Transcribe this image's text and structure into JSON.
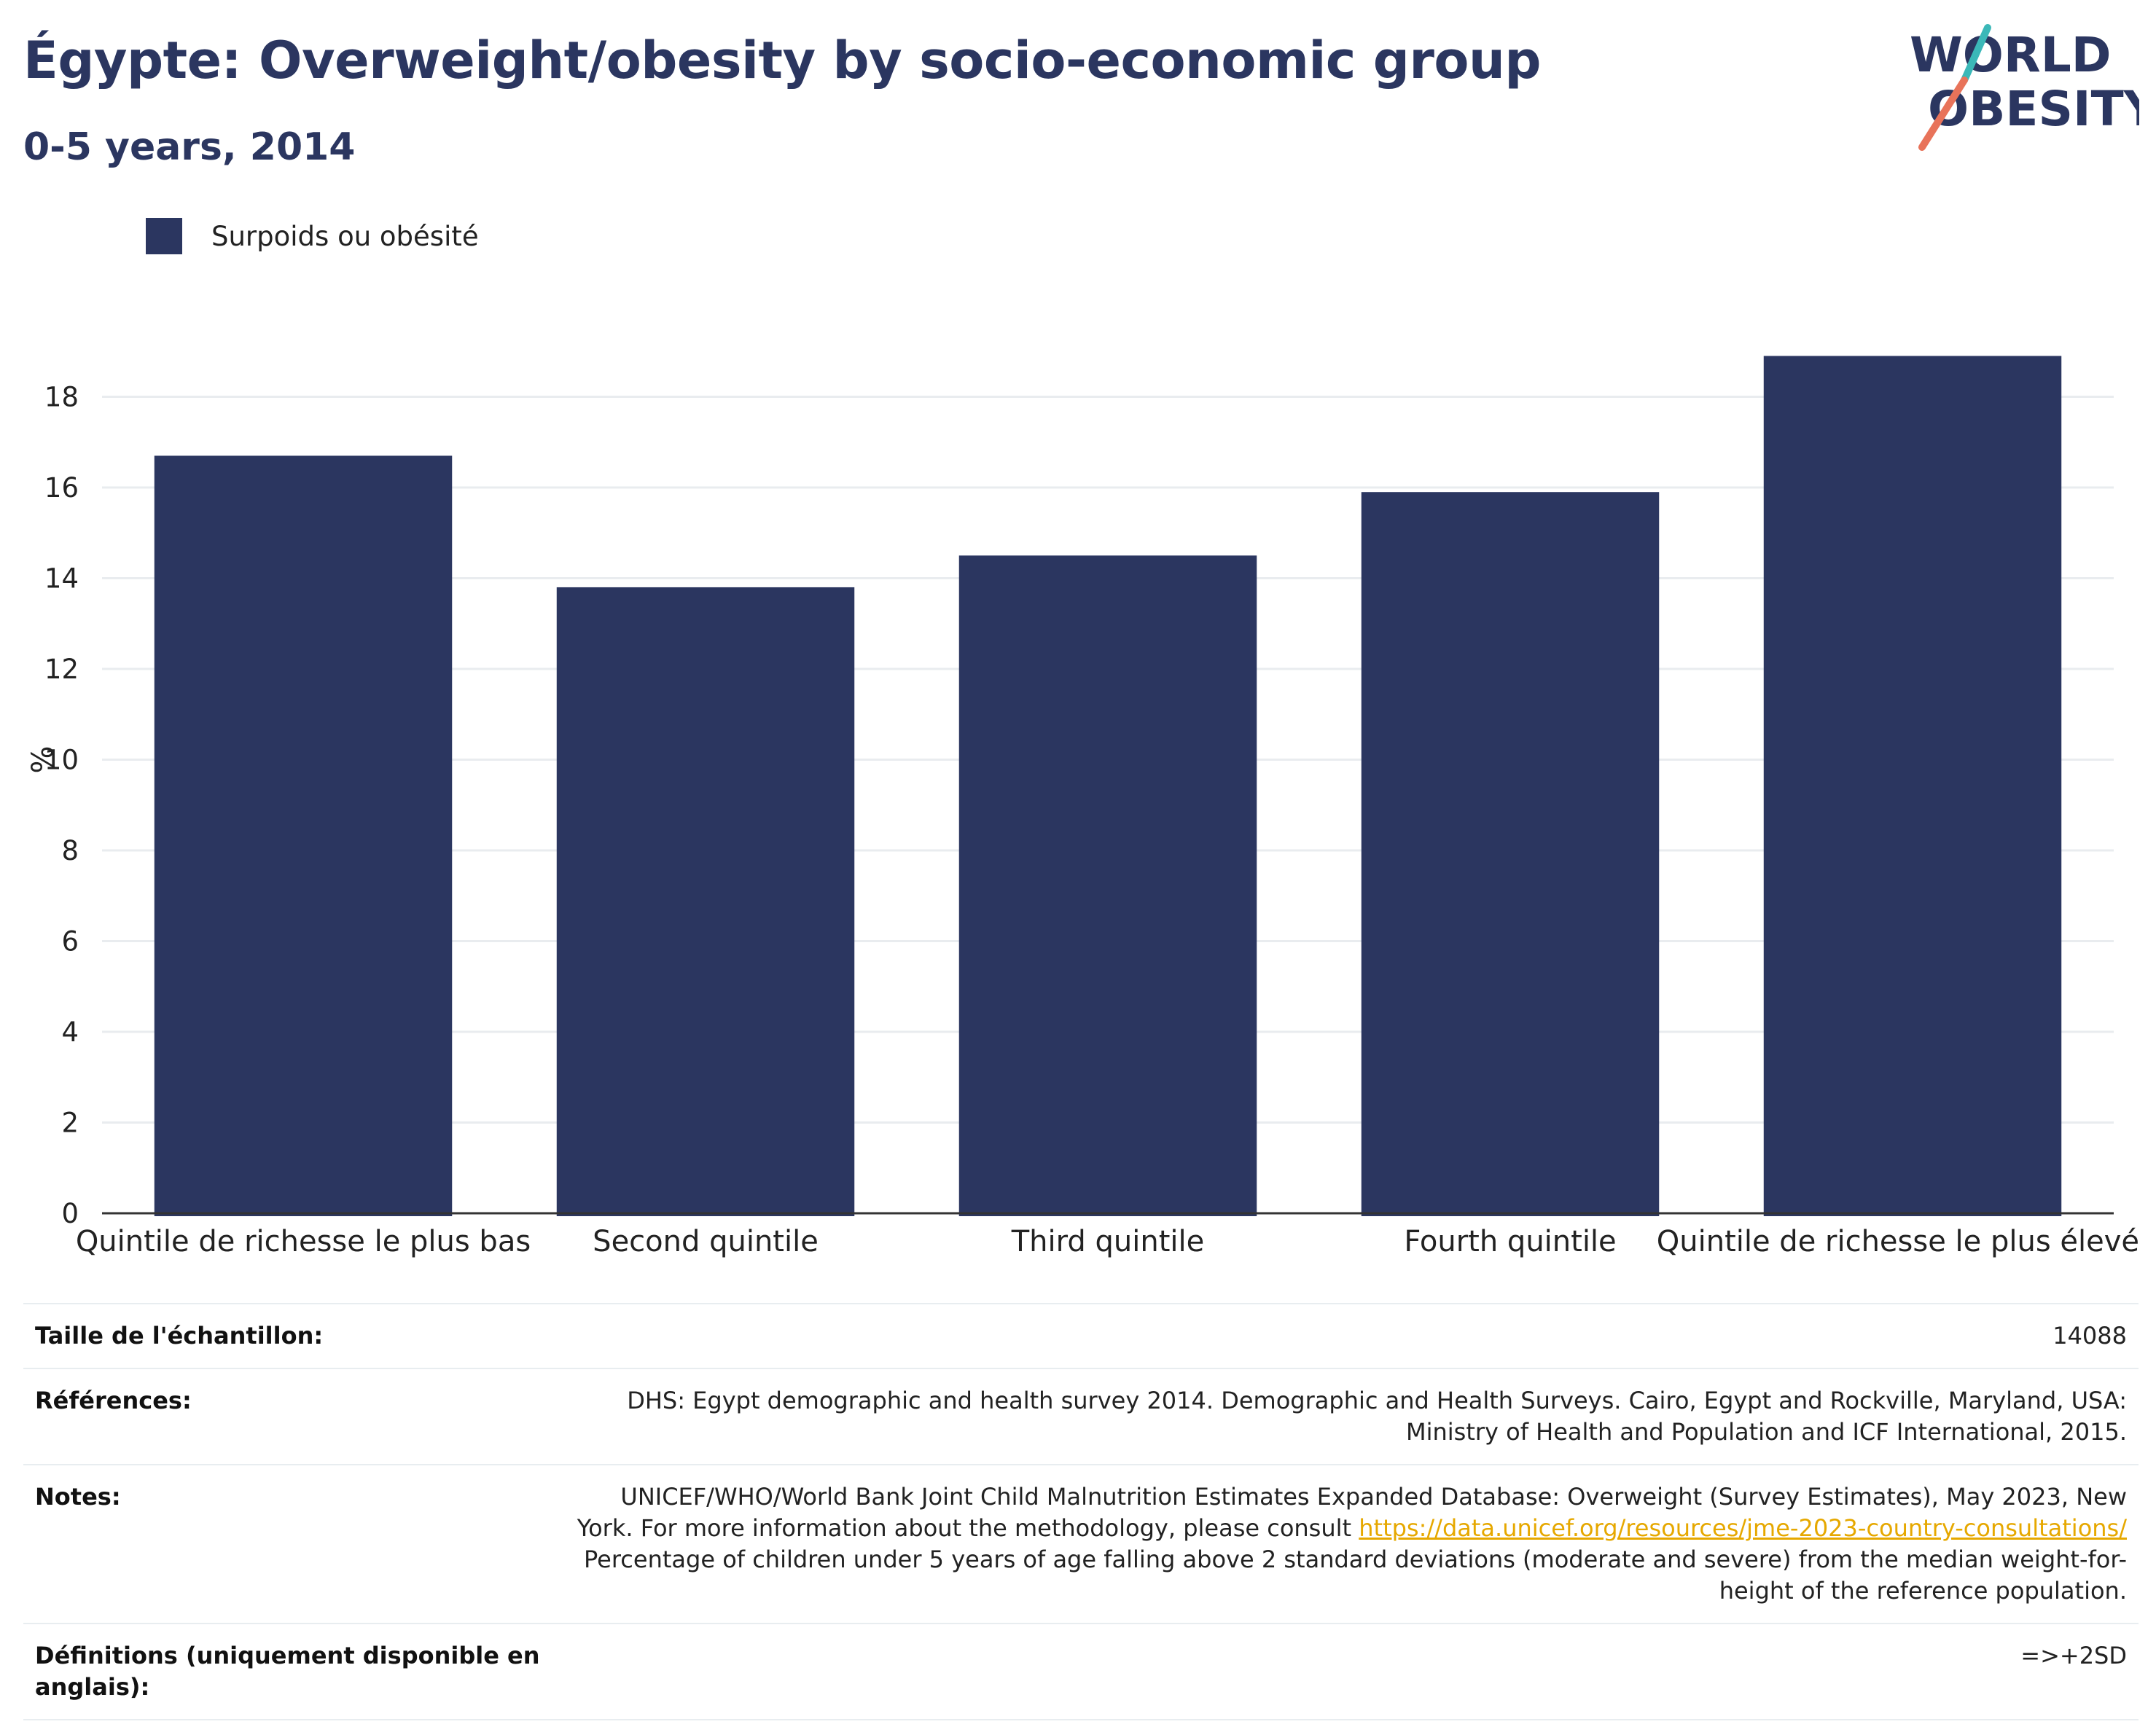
{
  "header": {
    "title": "Égypte: Overweight/obesity by socio-economic group",
    "subtitle": "0-5 years, 2014"
  },
  "logo": {
    "line1": "WORLD",
    "line2": "OBESITY",
    "colors": {
      "text": "#2b3660",
      "slash_top": "#3bb8b8",
      "slash_bottom": "#e8735a"
    }
  },
  "legend": {
    "items": [
      {
        "label": "Surpoids ou obésité",
        "color": "#2b3660"
      }
    ]
  },
  "chart_data": {
    "type": "bar",
    "categories": [
      "Quintile de richesse le plus bas",
      "Second quintile",
      "Third quintile",
      "Fourth quintile",
      "Quintile de richesse le plus élevé"
    ],
    "series": [
      {
        "name": "Surpoids ou obésité",
        "values": [
          16.7,
          13.8,
          14.5,
          15.9,
          18.9
        ],
        "color": "#2b3660"
      }
    ],
    "ylabel": "%",
    "xlabel": "",
    "ylim": [
      0,
      20
    ],
    "yticks": [
      0,
      2,
      4,
      6,
      8,
      10,
      12,
      14,
      16,
      18
    ],
    "grid": true,
    "legend_position": "top-left"
  },
  "meta": {
    "sample_label": "Taille de l'échantillon:",
    "sample_value": "14088",
    "references_label": "Références:",
    "references_value": "DHS: Egypt demographic and health survey 2014. Demographic and Health Surveys. Cairo, Egypt and Rockville, Maryland, USA: Ministry of Health and Population and ICF International, 2015.",
    "notes_label": "Notes:",
    "notes_text1": "UNICEF/WHO/World Bank Joint Child Malnutrition Estimates Expanded Database: Overweight (Survey Estimates), May 2023, New York. For more information about the methodology, please consult ",
    "notes_link": "https://data.unicef.org/resources/jme-2023-country-consultations/",
    "notes_text2": " Percentage of children under 5 years of age falling above 2 standard deviations (moderate and severe) from the median weight-for-height of the reference population.",
    "definitions_label": "Définitions (uniquement disponible en anglais):",
    "definitions_value": "=>+2SD"
  }
}
